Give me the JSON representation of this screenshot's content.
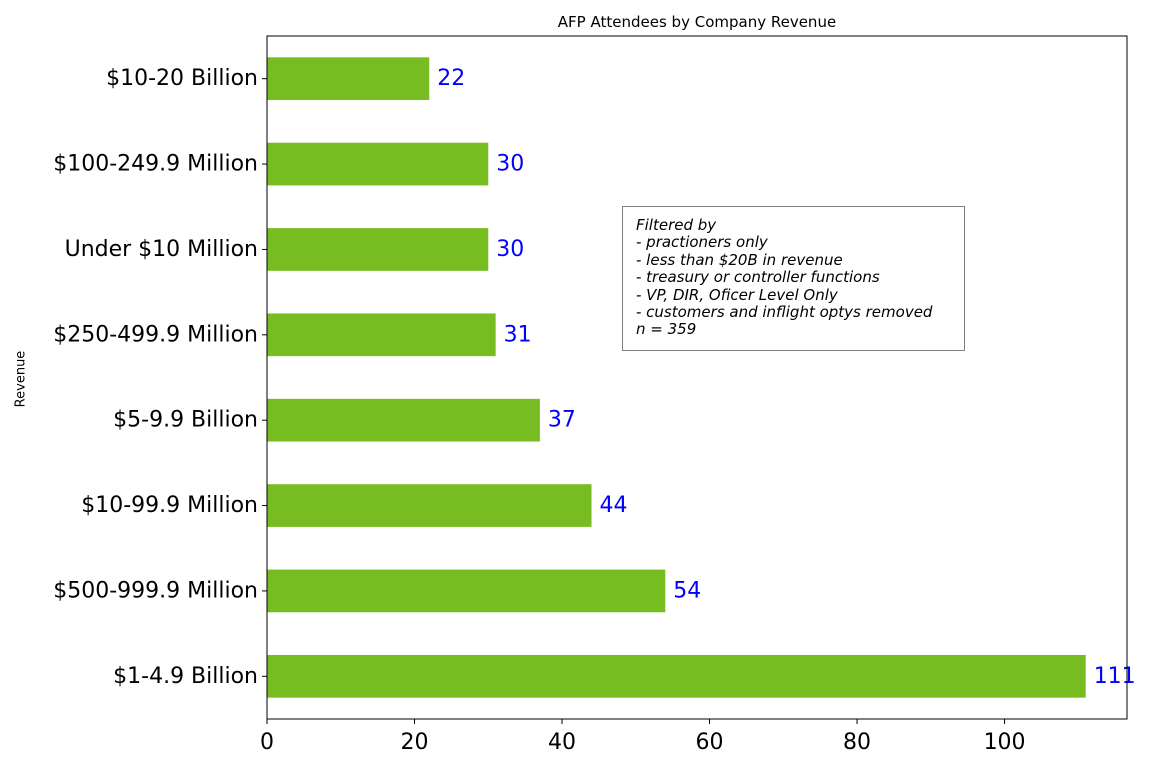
{
  "chart_data": {
    "type": "bar",
    "orientation": "horizontal",
    "title": "AFP Attendees by Company Revenue",
    "xlabel": "",
    "ylabel": "Revenue",
    "categories": [
      "$10-20 Billion",
      "$100-249.9 Million",
      "Under $10 Million",
      "$250-499.9 Million",
      "$5-9.9 Billion",
      "$10-99.9 Million",
      "$500-999.9 Million",
      "$1-4.9 Billion"
    ],
    "values": [
      22,
      30,
      30,
      31,
      37,
      44,
      54,
      111
    ],
    "xlim": [
      0,
      116.6
    ],
    "xticks": [
      0,
      20,
      40,
      60,
      80,
      100
    ],
    "grid": false,
    "data_labels": true,
    "annotation": [
      "Filtered by",
      "- practioners only",
      "- less than $20B in revenue",
      "- treasury or controller functions",
      "- VP, DIR, Oficer Level Only",
      "- customers and inflight optys removed",
      "n = 359"
    ]
  },
  "colors": {
    "bar": "#77bc21",
    "data_label": "#0000ff",
    "axis": "#000000",
    "annotation_border": "#808080"
  }
}
